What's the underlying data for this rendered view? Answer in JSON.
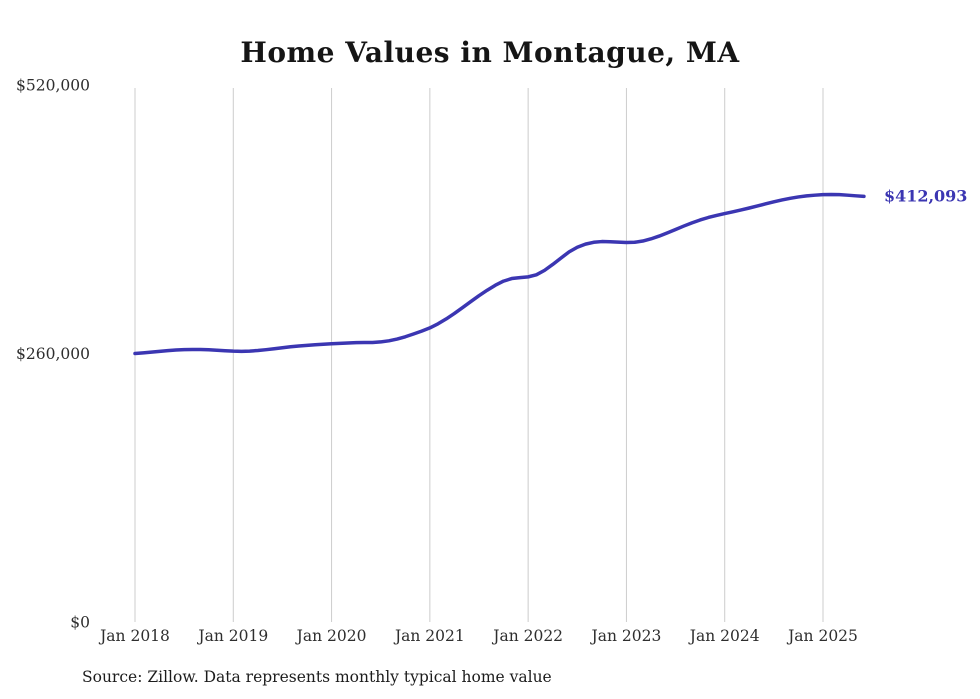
{
  "page": {
    "background": "#ffffff"
  },
  "chart_data": {
    "type": "line",
    "title": "Home Values in Montague, MA",
    "xlabel": "",
    "ylabel": "",
    "x_frequency": "monthly",
    "x_start": "Jan 2018",
    "x_end": "Jun 2025",
    "x_tick_labels": [
      "Jan 2018",
      "Jan 2019",
      "Jan 2020",
      "Jan 2021",
      "Jan 2022",
      "Jan 2023",
      "Jan 2024",
      "Jan 2025"
    ],
    "y_ticks": [
      0,
      260000,
      520000
    ],
    "y_tick_labels": [
      "$0",
      "$260,000",
      "$520,000"
    ],
    "ylim": [
      0,
      520000
    ],
    "grid": "vertical-only",
    "legend": "none",
    "line_color": "#3b36b2",
    "grid_color": "#cccccc",
    "end_label": "$412,093",
    "end_label_color": "#3b36b2",
    "series": [
      {
        "name": "Typical home value",
        "values": [
          260000,
          260600,
          261300,
          262100,
          262800,
          263400,
          263700,
          263900,
          263900,
          263600,
          263200,
          262700,
          262300,
          262100,
          262300,
          262900,
          263700,
          264600,
          265600,
          266500,
          267300,
          267900,
          268500,
          269000,
          269400,
          269800,
          270200,
          270500,
          270600,
          270700,
          271200,
          272300,
          274000,
          276200,
          278900,
          281700,
          284800,
          288800,
          293500,
          298800,
          304500,
          310300,
          316000,
          321300,
          326100,
          330100,
          332600,
          333500,
          334200,
          336200,
          340500,
          346200,
          352400,
          358400,
          362900,
          365900,
          367700,
          368400,
          368200,
          367800,
          367500,
          367700,
          368900,
          371000,
          373700,
          376800,
          380100,
          383400,
          386500,
          389300,
          391700,
          393700,
          395500,
          397200,
          399000,
          400900,
          402900,
          404900,
          406900,
          408700,
          410300,
          411600,
          412600,
          413300,
          413800,
          414000,
          413800,
          413300,
          412700,
          412093
        ]
      }
    ]
  },
  "source_note": "Source: Zillow. Data represents monthly typical home value"
}
